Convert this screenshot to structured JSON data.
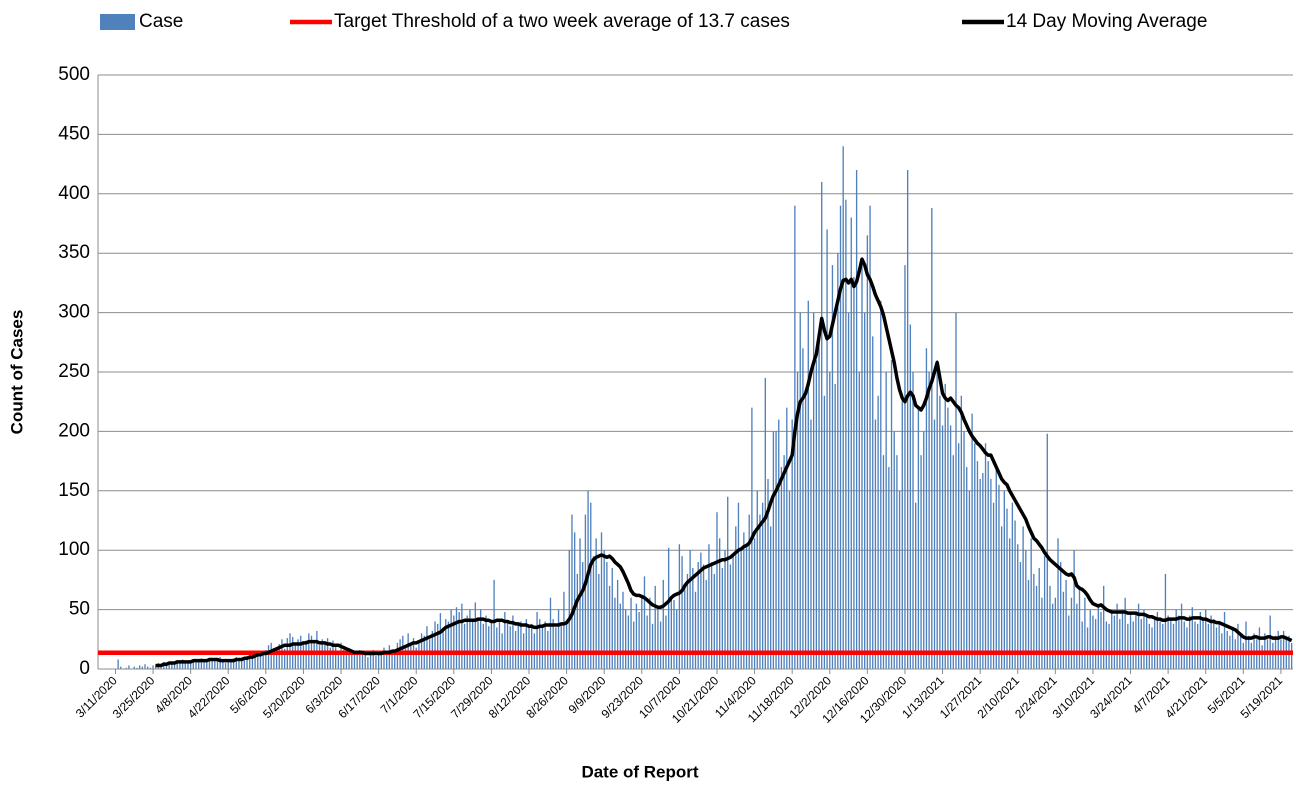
{
  "chart_data": {
    "type": "bar",
    "xlabel": "Date of Report",
    "ylabel": "Count of Cases",
    "ylim": [
      0,
      500
    ],
    "yticks": [
      0,
      50,
      100,
      150,
      200,
      250,
      300,
      350,
      400,
      450,
      500
    ],
    "grid": true,
    "legend": "top",
    "threshold": {
      "name": "Target Threshold of a two week average of 13.7 cases",
      "value": 13.7,
      "color": "#ff0000"
    },
    "categories": [
      null,
      null,
      null,
      null,
      null,
      null,
      "3/11/2020",
      null,
      null,
      null,
      null,
      null,
      null,
      null,
      null,
      null,
      null,
      null,
      null,
      null,
      "3/25/2020",
      null,
      null,
      null,
      null,
      null,
      null,
      null,
      null,
      null,
      null,
      null,
      null,
      null,
      "4/8/2020",
      null,
      null,
      null,
      null,
      null,
      null,
      null,
      null,
      null,
      null,
      null,
      null,
      null,
      "4/22/2020",
      null,
      null,
      null,
      null,
      null,
      null,
      null,
      null,
      null,
      null,
      null,
      null,
      null,
      "5/6/2020",
      null,
      null,
      null,
      null,
      null,
      null,
      null,
      null,
      null,
      null,
      null,
      null,
      null,
      "5/20/2020",
      null,
      null,
      null,
      null,
      null,
      null,
      null,
      null,
      null,
      null,
      null,
      null,
      null,
      "6/3/2020",
      null,
      null,
      null,
      null,
      null,
      null,
      null,
      null,
      null,
      null,
      null,
      null,
      null,
      "6/17/2020",
      null,
      null,
      null,
      null,
      null,
      null,
      null,
      null,
      null,
      null,
      null,
      null,
      null,
      "7/1/2020",
      null,
      null,
      null,
      null,
      null,
      null,
      null,
      null,
      null,
      null,
      null,
      null,
      null,
      "7/15/2020",
      null,
      null,
      null,
      null,
      null,
      null,
      null,
      null,
      null,
      null,
      null,
      null,
      null,
      "7/29/2020",
      null,
      null,
      null,
      null,
      null,
      null,
      null,
      null,
      null,
      null,
      null,
      null,
      null,
      "8/12/2020",
      null,
      null,
      null,
      null,
      null,
      null,
      null,
      null,
      null,
      null,
      null,
      null,
      null,
      "8/26/2020",
      null,
      null,
      null,
      null,
      null,
      null,
      null,
      null,
      null,
      null,
      null,
      null,
      null,
      "9/9/2020",
      null,
      null,
      null,
      null,
      null,
      null,
      null,
      null,
      null,
      null,
      null,
      null,
      null,
      "9/23/2020",
      null,
      null,
      null,
      null,
      null,
      null,
      null,
      null,
      null,
      null,
      null,
      null,
      null,
      "10/7/2020",
      null,
      null,
      null,
      null,
      null,
      null,
      null,
      null,
      null,
      null,
      null,
      null,
      null,
      "10/21/2020",
      null,
      null,
      null,
      null,
      null,
      null,
      null,
      null,
      null,
      null,
      null,
      null,
      null,
      "11/4/2020",
      null,
      null,
      null,
      null,
      null,
      null,
      null,
      null,
      null,
      null,
      null,
      null,
      null,
      "11/18/2020",
      null,
      null,
      null,
      null,
      null,
      null,
      null,
      null,
      null,
      null,
      null,
      null,
      null,
      "12/2/2020",
      null,
      null,
      null,
      null,
      null,
      null,
      null,
      null,
      null,
      null,
      null,
      null,
      null,
      "12/16/2020",
      null,
      null,
      null,
      null,
      null,
      null,
      null,
      null,
      null,
      null,
      null,
      null,
      null,
      "12/30/2020",
      null,
      null,
      null,
      null,
      null,
      null,
      null,
      null,
      null,
      null,
      null,
      null,
      null,
      "1/13/2021",
      null,
      null,
      null,
      null,
      null,
      null,
      null,
      null,
      null,
      null,
      null,
      null,
      null,
      "1/27/2021",
      null,
      null,
      null,
      null,
      null,
      null,
      null,
      null,
      null,
      null,
      null,
      null,
      null,
      "2/10/2021",
      null,
      null,
      null,
      null,
      null,
      null,
      null,
      null,
      null,
      null,
      null,
      null,
      null,
      "2/24/2021",
      null,
      null,
      null,
      null,
      null,
      null,
      null,
      null,
      null,
      null,
      null,
      null,
      null,
      "3/10/2021",
      null,
      null,
      null,
      null,
      null,
      null,
      null,
      null,
      null,
      null,
      null,
      null,
      null,
      "3/24/2021",
      null,
      null,
      null,
      null,
      null,
      null,
      null,
      null,
      null,
      null,
      null,
      null,
      null,
      "4/7/2021",
      null,
      null,
      null,
      null,
      null,
      null,
      null,
      null,
      null,
      null,
      null,
      null,
      null,
      "4/21/2021",
      null,
      null,
      null,
      null,
      null,
      null,
      null,
      null,
      null,
      null,
      null,
      null,
      null,
      "5/5/2021",
      null,
      null,
      null,
      null,
      null,
      null,
      null,
      null,
      null,
      null,
      null,
      null,
      null,
      "5/19/2021",
      null,
      null,
      null,
      null
    ],
    "series": [
      {
        "name": "Case",
        "type": "bar",
        "color": "#4f81bd",
        "values": [
          0,
          0,
          0,
          0,
          0,
          0,
          0,
          8,
          2,
          0,
          1,
          3,
          0,
          2,
          1,
          3,
          2,
          4,
          2,
          1,
          3,
          4,
          5,
          3,
          6,
          5,
          4,
          6,
          6,
          7,
          5,
          8,
          6,
          5,
          7,
          8,
          7,
          6,
          9,
          8,
          6,
          7,
          9,
          8,
          7,
          10,
          6,
          5,
          8,
          8,
          9,
          10,
          7,
          9,
          10,
          11,
          12,
          14,
          10,
          15,
          13,
          12,
          16,
          20,
          22,
          15,
          18,
          21,
          25,
          17,
          26,
          30,
          27,
          20,
          25,
          28,
          22,
          24,
          30,
          28,
          22,
          32,
          20,
          25,
          22,
          26,
          18,
          24,
          20,
          15,
          22,
          16,
          18,
          14,
          12,
          15,
          13,
          16,
          12,
          15,
          10,
          14,
          16,
          11,
          13,
          14,
          18,
          12,
          20,
          14,
          16,
          22,
          25,
          28,
          20,
          30,
          22,
          26,
          18,
          24,
          30,
          28,
          36,
          25,
          32,
          40,
          38,
          47,
          35,
          42,
          40,
          50,
          45,
          52,
          48,
          55,
          38,
          45,
          50,
          40,
          56,
          42,
          50,
          38,
          45,
          36,
          40,
          75,
          35,
          42,
          30,
          48,
          40,
          36,
          45,
          32,
          38,
          40,
          30,
          42,
          35,
          38,
          30,
          48,
          42,
          35,
          40,
          32,
          60,
          42,
          35,
          50,
          38,
          65,
          40,
          100,
          130,
          115,
          80,
          110,
          90,
          130,
          150,
          140,
          95,
          110,
          80,
          115,
          100,
          90,
          70,
          85,
          60,
          75,
          55,
          65,
          50,
          45,
          60,
          40,
          55,
          48,
          62,
          78,
          45,
          60,
          38,
          70,
          52,
          40,
          75,
          45,
          102,
          60,
          58,
          50,
          105,
          95,
          70,
          80,
          100,
          85,
          65,
          90,
          98,
          88,
          75,
          105,
          90,
          80,
          132,
          110,
          85,
          100,
          145,
          88,
          95,
          120,
          140,
          100,
          115,
          105,
          130,
          220,
          110,
          150,
          130,
          140,
          245,
          160,
          120,
          200,
          200,
          210,
          170,
          180,
          220,
          150,
          210,
          390,
          250,
          300,
          270,
          230,
          310,
          210,
          300,
          260,
          280,
          410,
          230,
          370,
          250,
          340,
          240,
          350,
          390,
          440,
          395,
          300,
          380,
          330,
          420,
          250,
          340,
          300,
          365,
          390,
          280,
          210,
          230,
          310,
          180,
          250,
          170,
          260,
          200,
          180,
          150,
          230,
          340,
          420,
          290,
          250,
          140,
          220,
          180,
          200,
          270,
          250,
          388,
          210,
          260,
          230,
          205,
          240,
          220,
          205,
          180,
          300,
          190,
          230,
          200,
          170,
          150,
          215,
          190,
          175,
          160,
          165,
          190,
          175,
          160,
          140,
          170,
          155,
          120,
          150,
          135,
          110,
          140,
          125,
          105,
          90,
          120,
          100,
          75,
          110,
          80,
          70,
          85,
          60,
          95,
          198,
          70,
          55,
          60,
          110,
          90,
          65,
          75,
          45,
          60,
          100,
          55,
          70,
          40,
          60,
          35,
          50,
          45,
          42,
          55,
          48,
          70,
          40,
          38,
          50,
          45,
          55,
          42,
          50,
          60,
          38,
          48,
          40,
          48,
          55,
          42,
          50,
          45,
          38,
          35,
          42,
          48,
          40,
          38,
          80,
          45,
          42,
          38,
          50,
          45,
          55,
          40,
          35,
          45,
          52,
          40,
          38,
          48,
          42,
          50,
          38,
          45,
          42,
          35,
          40,
          30,
          48,
          32,
          28,
          35,
          25,
          38,
          30,
          22,
          40,
          28,
          22,
          30,
          25,
          35,
          20,
          30,
          25,
          45,
          22,
          28,
          32,
          25,
          32,
          25,
          28,
          22
        ]
      },
      {
        "name": "14 Day Moving Average",
        "type": "line",
        "color": "#000000",
        "values": [
          null,
          null,
          null,
          null,
          null,
          null,
          null,
          null,
          null,
          null,
          null,
          null,
          null,
          null,
          null,
          null,
          null,
          null,
          null,
          null,
          null,
          3,
          3,
          3,
          4,
          4,
          5,
          5,
          5,
          6,
          6,
          6,
          6,
          6,
          6,
          7,
          7,
          7,
          7,
          7,
          7,
          8,
          8,
          8,
          8,
          7,
          7,
          7,
          7,
          7,
          7,
          8,
          8,
          8,
          9,
          9,
          10,
          10,
          11,
          12,
          12,
          13,
          13,
          14,
          15,
          16,
          17,
          18,
          19,
          20,
          20,
          20,
          21,
          21,
          21,
          21,
          22,
          22,
          23,
          23,
          23,
          23,
          22,
          22,
          22,
          21,
          21,
          20,
          20,
          20,
          19,
          18,
          17,
          16,
          15,
          14,
          14,
          14,
          14,
          13,
          13,
          13,
          13,
          13,
          13,
          13,
          14,
          14,
          14,
          15,
          15,
          16,
          17,
          18,
          19,
          20,
          21,
          22,
          22,
          23,
          24,
          25,
          26,
          27,
          28,
          29,
          30,
          31,
          33,
          35,
          36,
          37,
          38,
          39,
          40,
          40,
          41,
          41,
          41,
          41,
          41,
          42,
          42,
          42,
          41,
          41,
          40,
          40,
          41,
          41,
          41,
          40,
          40,
          39,
          39,
          38,
          38,
          37,
          37,
          37,
          36,
          36,
          35,
          35,
          36,
          36,
          37,
          37,
          37,
          37,
          37,
          37,
          38,
          38,
          39,
          42,
          46,
          52,
          58,
          62,
          66,
          72,
          80,
          88,
          92,
          94,
          95,
          96,
          95,
          94,
          95,
          93,
          90,
          88,
          86,
          82,
          77,
          72,
          66,
          63,
          62,
          62,
          61,
          60,
          58,
          56,
          54,
          53,
          52,
          52,
          53,
          55,
          57,
          60,
          62,
          63,
          64,
          66,
          70,
          73,
          75,
          77,
          79,
          81,
          83,
          85,
          86,
          87,
          88,
          89,
          90,
          91,
          92,
          92,
          93,
          94,
          96,
          98,
          100,
          101,
          103,
          104,
          106,
          110,
          115,
          118,
          121,
          124,
          127,
          133,
          140,
          146,
          150,
          155,
          160,
          165,
          170,
          175,
          180,
          200,
          215,
          225,
          228,
          232,
          240,
          250,
          258,
          265,
          280,
          295,
          285,
          278,
          280,
          290,
          300,
          310,
          320,
          327,
          328,
          325,
          328,
          322,
          326,
          335,
          345,
          340,
          332,
          328,
          322,
          315,
          310,
          305,
          298,
          288,
          278,
          268,
          258,
          245,
          235,
          228,
          225,
          230,
          233,
          230,
          222,
          220,
          218,
          222,
          228,
          236,
          242,
          250,
          258,
          245,
          232,
          228,
          226,
          228,
          225,
          222,
          220,
          216,
          210,
          205,
          200,
          196,
          193,
          190,
          188,
          185,
          182,
          180,
          180,
          175,
          170,
          165,
          160,
          157,
          155,
          150,
          146,
          142,
          138,
          134,
          130,
          126,
          120,
          115,
          110,
          108,
          105,
          102,
          98,
          95,
          92,
          90,
          88,
          86,
          84,
          82,
          80,
          79,
          80,
          77,
          70,
          68,
          67,
          65,
          62,
          58,
          55,
          54,
          53,
          54,
          52,
          50,
          49,
          48,
          48,
          48,
          48,
          48,
          48,
          47,
          47,
          47,
          47,
          46,
          46,
          46,
          45,
          44,
          44,
          43,
          42,
          42,
          41,
          41,
          42,
          42,
          42,
          42,
          43,
          43,
          43,
          42,
          42,
          43,
          43,
          43,
          43,
          42,
          42,
          41,
          40,
          40,
          39,
          39,
          38,
          37,
          36,
          35,
          34,
          33,
          31,
          29,
          27,
          26,
          26,
          26,
          27,
          27,
          26,
          26,
          26,
          27,
          27,
          26,
          26,
          26,
          27,
          27,
          26,
          25,
          24
        ]
      }
    ]
  }
}
